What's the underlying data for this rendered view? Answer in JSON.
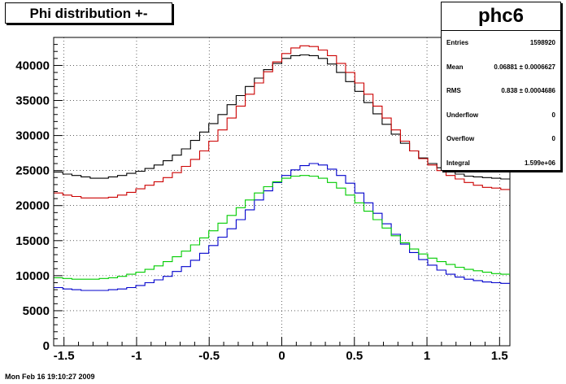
{
  "title": "Phi distribution +-",
  "timestamp": "Mon Feb 16 19:10:27 2009",
  "stats": {
    "name": "phc6",
    "rows": [
      {
        "label": "Entries",
        "value": "1598920"
      },
      {
        "label": "Mean",
        "value": "0.06881 ± 0.0006627"
      },
      {
        "label": "RMS",
        "value": "0.838 ± 0.0004686"
      },
      {
        "label": "Underflow",
        "value": "0"
      },
      {
        "label": "Overflow",
        "value": "0"
      },
      {
        "label": "Integral",
        "value": "1.599e+06"
      }
    ]
  },
  "chart_data": {
    "type": "line",
    "step": true,
    "grid": true,
    "xlim": [
      -1.571,
      1.571
    ],
    "ylim": [
      0,
      44000
    ],
    "x_ticks": [
      -1.5,
      -1,
      -0.5,
      0,
      0.5,
      1,
      1.5
    ],
    "x_tick_labels": [
      "-1.5",
      "-1",
      "-0.5",
      "0",
      "0.5",
      "1",
      "1.5"
    ],
    "y_ticks": [
      0,
      5000,
      10000,
      15000,
      20000,
      25000,
      30000,
      35000,
      40000
    ],
    "y_tick_labels": [
      "0",
      "5000",
      "10000",
      "15000",
      "20000",
      "25000",
      "30000",
      "35000",
      "40000"
    ],
    "n_bins": 50,
    "series": [
      {
        "color": "#000000",
        "values": [
          24800,
          24500,
          24300,
          24100,
          23900,
          23900,
          24100,
          24300,
          24600,
          24900,
          25300,
          25800,
          26400,
          27200,
          28100,
          29300,
          30500,
          31700,
          33000,
          34400,
          35700,
          37000,
          38200,
          39400,
          40300,
          41000,
          41400,
          41500,
          41400,
          41000,
          40200,
          39000,
          37700,
          36300,
          34700,
          33100,
          31600,
          30200,
          28900,
          27800,
          26800,
          26000,
          25400,
          24900,
          24500,
          24200,
          24100,
          24000,
          23900,
          23800
        ]
      },
      {
        "color": "#cc0000",
        "values": [
          21800,
          21500,
          21300,
          21100,
          21100,
          21100,
          21200,
          21500,
          21900,
          22400,
          22900,
          23400,
          24000,
          24700,
          25600,
          26600,
          27800,
          29200,
          30800,
          32500,
          34200,
          35900,
          37500,
          39100,
          40500,
          41700,
          42500,
          42800,
          42700,
          42200,
          41400,
          40300,
          39000,
          37500,
          35900,
          34200,
          32500,
          30800,
          29200,
          27800,
          26700,
          25800,
          25000,
          24300,
          23800,
          23300,
          22900,
          22600,
          22500,
          22300
        ]
      },
      {
        "color": "#0000cc",
        "values": [
          8300,
          8100,
          8000,
          7900,
          7900,
          7900,
          8000,
          8100,
          8300,
          8600,
          9000,
          9400,
          9900,
          10600,
          11300,
          12200,
          13200,
          14300,
          15500,
          16700,
          18000,
          19400,
          20800,
          22100,
          23300,
          24300,
          25100,
          25700,
          26000,
          25800,
          25200,
          24300,
          23200,
          21800,
          20400,
          18900,
          17400,
          15900,
          14500,
          13300,
          12300,
          11500,
          10800,
          10200,
          9800,
          9500,
          9300,
          9100,
          9000,
          8900
        ]
      },
      {
        "color": "#00cc00",
        "values": [
          9700,
          9600,
          9500,
          9500,
          9500,
          9600,
          9700,
          9900,
          10200,
          10500,
          10900,
          11400,
          12000,
          12700,
          13500,
          14400,
          15400,
          16400,
          17500,
          18600,
          19700,
          20800,
          21800,
          22700,
          23400,
          23900,
          24200,
          24300,
          24200,
          23900,
          23300,
          22500,
          21500,
          20400,
          19200,
          18000,
          16800,
          15700,
          14700,
          13800,
          13100,
          12500,
          12000,
          11600,
          11200,
          10900,
          10700,
          10500,
          10300,
          10200
        ]
      }
    ]
  }
}
